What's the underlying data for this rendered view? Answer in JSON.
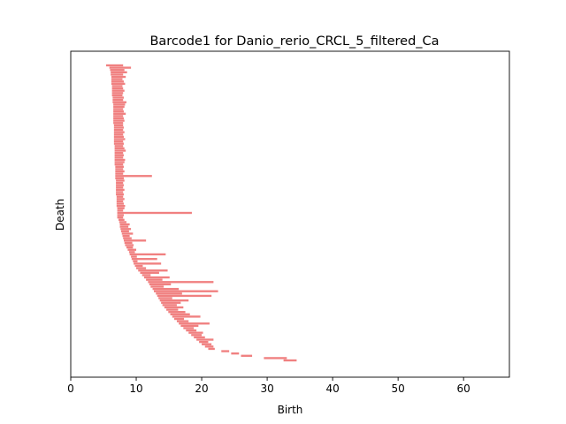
{
  "chart_data": {
    "type": "barcode",
    "title": "Barcode1 for Danio_rerio_CRCL_5_filtered_Ca",
    "xlabel": "Birth",
    "ylabel": "Death",
    "xlim": [
      0,
      67
    ],
    "xticks": [
      0,
      10,
      20,
      30,
      40,
      50,
      60
    ],
    "xtick_labels": [
      "0",
      "10",
      "20",
      "30",
      "40",
      "50",
      "60"
    ],
    "grid": false,
    "bar_color": "#f08080",
    "bars": [
      {
        "start": 5.4,
        "end": 8.0
      },
      {
        "start": 5.9,
        "end": 9.2
      },
      {
        "start": 6.0,
        "end": 8.2
      },
      {
        "start": 6.1,
        "end": 8.6
      },
      {
        "start": 6.1,
        "end": 8.0
      },
      {
        "start": 6.2,
        "end": 8.4
      },
      {
        "start": 6.2,
        "end": 7.9
      },
      {
        "start": 6.2,
        "end": 8.1
      },
      {
        "start": 6.2,
        "end": 8.3
      },
      {
        "start": 6.3,
        "end": 7.9
      },
      {
        "start": 6.3,
        "end": 8.0
      },
      {
        "start": 6.3,
        "end": 8.2
      },
      {
        "start": 6.3,
        "end": 8.0
      },
      {
        "start": 6.3,
        "end": 7.9
      },
      {
        "start": 6.4,
        "end": 8.1
      },
      {
        "start": 6.4,
        "end": 8.0
      },
      {
        "start": 6.4,
        "end": 8.5
      },
      {
        "start": 6.5,
        "end": 8.3
      },
      {
        "start": 6.5,
        "end": 8.2
      },
      {
        "start": 6.5,
        "end": 8.0
      },
      {
        "start": 6.5,
        "end": 8.1
      },
      {
        "start": 6.5,
        "end": 8.4
      },
      {
        "start": 6.5,
        "end": 8.0
      },
      {
        "start": 6.5,
        "end": 8.1
      },
      {
        "start": 6.5,
        "end": 8.2
      },
      {
        "start": 6.5,
        "end": 8.0
      },
      {
        "start": 6.6,
        "end": 8.0
      },
      {
        "start": 6.6,
        "end": 8.1
      },
      {
        "start": 6.6,
        "end": 8.0
      },
      {
        "start": 6.6,
        "end": 8.2
      },
      {
        "start": 6.6,
        "end": 8.0
      },
      {
        "start": 6.6,
        "end": 8.1
      },
      {
        "start": 6.6,
        "end": 8.3
      },
      {
        "start": 6.6,
        "end": 8.0
      },
      {
        "start": 6.6,
        "end": 8.1
      },
      {
        "start": 6.7,
        "end": 8.0
      },
      {
        "start": 6.7,
        "end": 8.2
      },
      {
        "start": 6.7,
        "end": 8.4
      },
      {
        "start": 6.7,
        "end": 8.0
      },
      {
        "start": 6.7,
        "end": 8.1
      },
      {
        "start": 6.7,
        "end": 8.0
      },
      {
        "start": 6.7,
        "end": 8.3
      },
      {
        "start": 6.7,
        "end": 8.2
      },
      {
        "start": 6.7,
        "end": 8.0
      },
      {
        "start": 6.8,
        "end": 8.1
      },
      {
        "start": 6.8,
        "end": 8.0
      },
      {
        "start": 6.8,
        "end": 8.2
      },
      {
        "start": 6.8,
        "end": 8.0
      },
      {
        "start": 6.8,
        "end": 12.4
      },
      {
        "start": 6.8,
        "end": 8.1
      },
      {
        "start": 6.9,
        "end": 8.2
      },
      {
        "start": 6.9,
        "end": 8.0
      },
      {
        "start": 6.9,
        "end": 8.1
      },
      {
        "start": 6.9,
        "end": 8.0
      },
      {
        "start": 6.9,
        "end": 8.2
      },
      {
        "start": 6.9,
        "end": 8.0
      },
      {
        "start": 6.9,
        "end": 8.1
      },
      {
        "start": 7.0,
        "end": 8.0
      },
      {
        "start": 7.0,
        "end": 8.2
      },
      {
        "start": 7.0,
        "end": 8.0
      },
      {
        "start": 7.0,
        "end": 8.1
      },
      {
        "start": 7.0,
        "end": 8.3
      },
      {
        "start": 7.1,
        "end": 8.2
      },
      {
        "start": 7.1,
        "end": 8.0
      },
      {
        "start": 7.1,
        "end": 18.5
      },
      {
        "start": 7.1,
        "end": 8.1
      },
      {
        "start": 7.1,
        "end": 8.0
      },
      {
        "start": 7.3,
        "end": 8.2
      },
      {
        "start": 7.4,
        "end": 8.5
      },
      {
        "start": 7.5,
        "end": 9.0
      },
      {
        "start": 7.5,
        "end": 8.8
      },
      {
        "start": 7.6,
        "end": 9.2
      },
      {
        "start": 7.7,
        "end": 8.9
      },
      {
        "start": 7.8,
        "end": 9.5
      },
      {
        "start": 7.9,
        "end": 9.0
      },
      {
        "start": 8.0,
        "end": 9.3
      },
      {
        "start": 8.1,
        "end": 11.5
      },
      {
        "start": 8.2,
        "end": 9.4
      },
      {
        "start": 8.3,
        "end": 9.6
      },
      {
        "start": 8.5,
        "end": 9.5
      },
      {
        "start": 8.7,
        "end": 10.0
      },
      {
        "start": 8.9,
        "end": 9.8
      },
      {
        "start": 9.0,
        "end": 14.5
      },
      {
        "start": 9.2,
        "end": 10.1
      },
      {
        "start": 9.3,
        "end": 13.2
      },
      {
        "start": 9.5,
        "end": 10.2
      },
      {
        "start": 9.6,
        "end": 13.8
      },
      {
        "start": 9.8,
        "end": 11.0
      },
      {
        "start": 10.0,
        "end": 11.5
      },
      {
        "start": 10.3,
        "end": 14.8
      },
      {
        "start": 10.6,
        "end": 13.5
      },
      {
        "start": 10.9,
        "end": 12.2
      },
      {
        "start": 11.2,
        "end": 15.1
      },
      {
        "start": 11.5,
        "end": 14.0
      },
      {
        "start": 11.8,
        "end": 21.8
      },
      {
        "start": 12.0,
        "end": 15.3
      },
      {
        "start": 12.2,
        "end": 14.2
      },
      {
        "start": 12.5,
        "end": 16.5
      },
      {
        "start": 12.7,
        "end": 22.5
      },
      {
        "start": 13.0,
        "end": 17.0
      },
      {
        "start": 13.2,
        "end": 21.5
      },
      {
        "start": 13.4,
        "end": 15.5
      },
      {
        "start": 13.6,
        "end": 18.0
      },
      {
        "start": 13.8,
        "end": 16.8
      },
      {
        "start": 14.0,
        "end": 16.2
      },
      {
        "start": 14.3,
        "end": 17.2
      },
      {
        "start": 14.6,
        "end": 16.4
      },
      {
        "start": 14.9,
        "end": 17.5
      },
      {
        "start": 15.2,
        "end": 18.2
      },
      {
        "start": 15.5,
        "end": 19.8
      },
      {
        "start": 15.8,
        "end": 17.3
      },
      {
        "start": 16.2,
        "end": 18.0
      },
      {
        "start": 16.5,
        "end": 21.2
      },
      {
        "start": 16.8,
        "end": 19.5
      },
      {
        "start": 17.2,
        "end": 18.8
      },
      {
        "start": 17.6,
        "end": 19.2
      },
      {
        "start": 18.0,
        "end": 20.2
      },
      {
        "start": 18.4,
        "end": 20.0
      },
      {
        "start": 18.8,
        "end": 20.5
      },
      {
        "start": 19.2,
        "end": 21.8
      },
      {
        "start": 19.6,
        "end": 21.0
      },
      {
        "start": 20.0,
        "end": 21.5
      },
      {
        "start": 20.5,
        "end": 21.8
      },
      {
        "start": 21.0,
        "end": 22.0
      },
      {
        "start": 23.0,
        "end": 24.2
      },
      {
        "start": 24.5,
        "end": 25.7
      },
      {
        "start": 26.0,
        "end": 27.7
      },
      {
        "start": 29.5,
        "end": 33.0
      },
      {
        "start": 32.5,
        "end": 34.5
      }
    ]
  }
}
